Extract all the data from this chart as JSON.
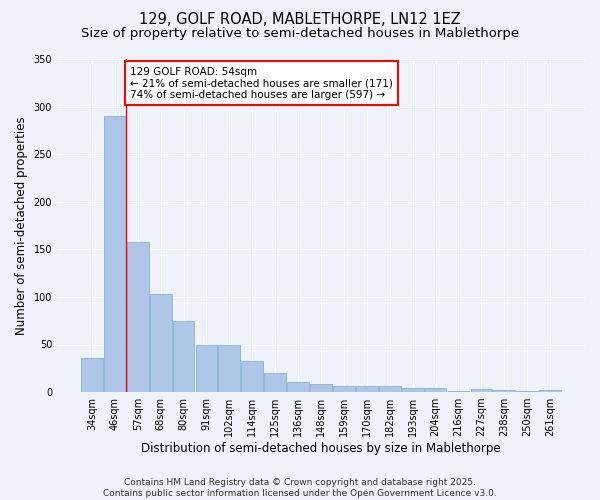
{
  "title1": "129, GOLF ROAD, MABLETHORPE, LN12 1EZ",
  "title2": "Size of property relative to semi-detached houses in Mablethorpe",
  "xlabel": "Distribution of semi-detached houses by size in Mablethorpe",
  "ylabel": "Number of semi-detached properties",
  "categories": [
    "34sqm",
    "46sqm",
    "57sqm",
    "68sqm",
    "80sqm",
    "91sqm",
    "102sqm",
    "114sqm",
    "125sqm",
    "136sqm",
    "148sqm",
    "159sqm",
    "170sqm",
    "182sqm",
    "193sqm",
    "204sqm",
    "216sqm",
    "227sqm",
    "238sqm",
    "250sqm",
    "261sqm"
  ],
  "values": [
    36,
    290,
    158,
    103,
    75,
    50,
    50,
    33,
    20,
    11,
    8,
    6,
    6,
    6,
    4,
    4,
    1,
    3,
    2,
    1,
    2
  ],
  "bar_color": "#aec6e8",
  "bar_edge_color": "#7aaad0",
  "vline_x_index": 1.5,
  "vline_color": "red",
  "annotation_text": "129 GOLF ROAD: 54sqm\n← 21% of semi-detached houses are smaller (171)\n74% of semi-detached houses are larger (597) →",
  "annotation_box_color": "white",
  "annotation_box_edge_color": "red",
  "ylim": [
    0,
    350
  ],
  "yticks": [
    0,
    50,
    100,
    150,
    200,
    250,
    300,
    350
  ],
  "footer_text": "Contains HM Land Registry data © Crown copyright and database right 2025.\nContains public sector information licensed under the Open Government Licence v3.0.",
  "background_color": "#eef2fb",
  "grid_color": "white",
  "title_fontsize": 10.5,
  "subtitle_fontsize": 9.5,
  "axis_label_fontsize": 8.5,
  "tick_fontsize": 7,
  "footer_fontsize": 6.5,
  "annotation_fontsize": 7.5
}
